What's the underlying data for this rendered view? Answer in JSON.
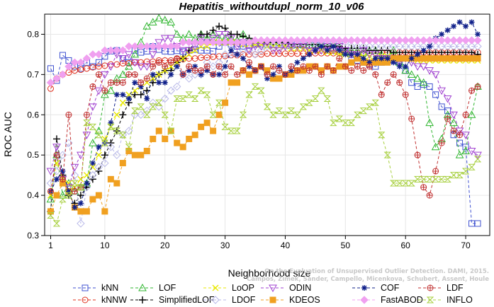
{
  "chart_data": {
    "type": "line",
    "title": "Hepatitis_withoutdupl_norm_10_v06",
    "xlabel": "Neighborhood size",
    "ylabel": "ROC AUC",
    "xlim": [
      0,
      74
    ],
    "ylim": [
      0.3,
      0.85
    ],
    "xticks": [
      1,
      10,
      20,
      30,
      40,
      50,
      60,
      70
    ],
    "yticks": [
      0.3,
      0.4,
      0.5,
      0.6,
      0.7,
      0.8
    ],
    "credit_lines": [
      "Campos, Zimek, Sander, Campello, Micenkova, Schubert, Assent, Houle",
      "On the Evaluation of Unsupervised Outlier Detection. DAMI, 2015."
    ],
    "legend_position": "bottom",
    "series": [
      {
        "name": "kNN",
        "color": "#3f51d0",
        "marker": "square",
        "values": [
          0.715,
          0.685,
          0.748,
          0.735,
          0.72,
          0.715,
          0.73,
          0.72,
          0.73,
          0.745,
          0.758,
          0.76,
          0.74,
          0.73,
          0.76,
          0.755,
          0.758,
          0.77,
          0.762,
          0.758,
          0.757,
          0.759,
          0.757,
          0.76,
          0.762,
          0.76,
          0.76,
          0.758,
          0.77,
          0.78,
          0.775,
          0.77,
          0.77,
          0.772,
          0.775,
          0.775,
          0.775,
          0.775,
          0.778,
          0.775,
          0.772,
          0.774,
          0.773,
          0.772,
          0.772,
          0.771,
          0.77,
          0.765,
          0.76,
          0.755,
          0.735,
          0.735,
          0.73,
          0.725,
          0.72,
          0.73,
          0.735,
          0.735,
          0.735,
          0.71,
          0.68,
          0.67,
          0.675,
          0.67,
          0.65,
          0.62,
          0.61,
          0.55,
          0.53,
          0.52,
          0.33,
          0.33
        ]
      },
      {
        "name": "kNNW",
        "color": "#e0301e",
        "marker": "circle",
        "values": [
          0.665,
          0.69,
          0.7,
          0.705,
          0.71,
          0.712,
          0.715,
          0.718,
          0.72,
          0.722,
          0.725,
          0.725,
          0.728,
          0.728,
          0.73,
          0.73,
          0.732,
          0.732,
          0.735,
          0.735,
          0.735,
          0.738,
          0.738,
          0.74,
          0.74,
          0.742,
          0.742,
          0.744,
          0.745,
          0.746,
          0.748,
          0.748,
          0.75,
          0.75,
          0.75,
          0.75,
          0.752,
          0.752,
          0.752,
          0.752,
          0.752,
          0.752,
          0.752,
          0.752,
          0.753,
          0.753,
          0.753,
          0.753,
          0.754,
          0.754,
          0.754,
          0.754,
          0.754,
          0.754,
          0.754,
          0.755,
          0.755,
          0.755,
          0.755,
          0.755,
          0.755,
          0.755,
          0.755,
          0.755,
          0.755,
          0.755,
          0.755,
          0.755,
          0.755,
          0.755,
          0.755,
          0.755
        ]
      },
      {
        "name": "LOF",
        "color": "#2fb52f",
        "marker": "triangle-up",
        "values": [
          0.39,
          0.5,
          0.4,
          0.43,
          0.41,
          0.42,
          0.43,
          0.53,
          0.56,
          0.65,
          0.66,
          0.69,
          0.7,
          0.72,
          0.75,
          0.78,
          0.82,
          0.83,
          0.84,
          0.835,
          0.83,
          0.8,
          0.79,
          0.8,
          0.79,
          0.8,
          0.79,
          0.8,
          0.79,
          0.79,
          0.79,
          0.785,
          0.8,
          0.785,
          0.78,
          0.78,
          0.775,
          0.78,
          0.78,
          0.775,
          0.775,
          0.775,
          0.775,
          0.78,
          0.775,
          0.775,
          0.77,
          0.775,
          0.77,
          0.755,
          0.76,
          0.76,
          0.755,
          0.76,
          0.76,
          0.75,
          0.74,
          0.76,
          0.73,
          0.71,
          0.7,
          0.69,
          0.68,
          0.58,
          0.52,
          0.54,
          0.6,
          0.58,
          0.5,
          0.51,
          0.6,
          0.67
        ]
      },
      {
        "name": "SimplifiedLOF",
        "color": "#000000",
        "marker": "plus",
        "values": [
          0.36,
          0.54,
          0.45,
          0.4,
          0.38,
          0.4,
          0.42,
          0.44,
          0.46,
          0.5,
          0.53,
          0.56,
          0.6,
          0.63,
          0.65,
          0.65,
          0.66,
          0.68,
          0.7,
          0.71,
          0.71,
          0.73,
          0.74,
          0.76,
          0.78,
          0.8,
          0.8,
          0.81,
          0.82,
          0.815,
          0.8,
          0.8,
          0.795,
          0.79,
          0.785,
          0.785,
          0.78,
          0.78,
          0.78,
          0.78,
          0.775,
          0.775,
          0.775,
          0.775,
          0.775,
          0.77,
          0.77,
          0.77,
          0.77,
          0.765,
          0.765,
          0.765,
          0.765,
          0.76,
          0.76,
          0.76,
          0.76,
          0.755,
          0.755,
          0.755,
          0.755,
          0.755,
          0.755,
          0.755,
          0.755,
          0.755,
          0.755,
          0.755,
          0.755,
          0.755,
          0.755,
          0.75
        ]
      },
      {
        "name": "LoOP",
        "color": "#e8e800",
        "marker": "x",
        "values": [
          0.4,
          0.48,
          0.44,
          0.43,
          0.42,
          0.44,
          0.45,
          0.47,
          0.5,
          0.54,
          0.57,
          0.6,
          0.63,
          0.65,
          0.66,
          0.67,
          0.68,
          0.69,
          0.7,
          0.71,
          0.72,
          0.73,
          0.74,
          0.75,
          0.76,
          0.77,
          0.77,
          0.78,
          0.78,
          0.78,
          0.78,
          0.78,
          0.775,
          0.775,
          0.775,
          0.775,
          0.77,
          0.77,
          0.77,
          0.77,
          0.765,
          0.765,
          0.765,
          0.76,
          0.76,
          0.76,
          0.755,
          0.755,
          0.75,
          0.75,
          0.75,
          0.75,
          0.745,
          0.745,
          0.745,
          0.745,
          0.745,
          0.74,
          0.74,
          0.74,
          0.74,
          0.735,
          0.735,
          0.735,
          0.735,
          0.735,
          0.735,
          0.735,
          0.735,
          0.735,
          0.735,
          0.735
        ]
      },
      {
        "name": "LDOF",
        "color": "#b8b8e8",
        "marker": "diamond",
        "values": [
          0.43,
          0.46,
          0.5,
          0.53,
          0.45,
          0.33,
          0.42,
          0.45,
          0.47,
          0.48,
          0.52,
          0.5,
          0.55,
          0.56,
          0.6,
          0.6,
          0.61,
          0.63,
          0.62,
          0.64,
          0.66,
          0.67,
          0.7,
          0.69,
          0.7,
          0.7,
          0.73,
          0.72,
          0.73,
          0.75,
          0.75,
          0.75,
          0.76,
          0.76,
          0.75,
          0.76,
          0.77,
          0.77,
          0.77,
          0.77,
          0.77,
          0.78,
          0.78,
          0.78,
          0.78,
          0.78,
          0.78,
          0.78,
          0.78,
          0.78,
          0.77,
          0.77,
          0.77,
          0.77,
          0.77,
          0.77,
          0.77,
          0.77,
          0.77,
          0.77,
          0.77,
          0.77,
          0.77,
          0.77,
          0.77,
          0.77,
          0.77,
          0.77,
          0.77,
          0.77,
          0.77,
          0.77
        ]
      },
      {
        "name": "ODIN",
        "color": "#a040d0",
        "marker": "triangle-down",
        "values": [
          0.46,
          0.52,
          0.44,
          0.42,
          0.47,
          0.5,
          0.55,
          0.62,
          0.66,
          0.7,
          0.72,
          0.75,
          0.74,
          0.75,
          0.73,
          0.72,
          0.72,
          0.75,
          0.78,
          0.79,
          0.79,
          0.77,
          0.76,
          0.76,
          0.77,
          0.79,
          0.78,
          0.79,
          0.8,
          0.8,
          0.79,
          0.77,
          0.78,
          0.76,
          0.77,
          0.77,
          0.78,
          0.76,
          0.76,
          0.77,
          0.77,
          0.77,
          0.77,
          0.76,
          0.76,
          0.76,
          0.77,
          0.76,
          0.77,
          0.76,
          0.75,
          0.75,
          0.76,
          0.75,
          0.75,
          0.74,
          0.74,
          0.74,
          0.73,
          0.74,
          0.73,
          0.72,
          0.72,
          0.71,
          0.7,
          0.66,
          0.64,
          0.6,
          0.56,
          0.55,
          0.51,
          0.5
        ]
      },
      {
        "name": "KDEOS",
        "color": "#f0a020",
        "marker": "square-filled",
        "values": [
          0.36,
          0.4,
          0.43,
          0.41,
          0.37,
          0.36,
          0.36,
          0.39,
          0.4,
          0.36,
          0.44,
          0.43,
          0.48,
          0.51,
          0.5,
          0.5,
          0.51,
          0.54,
          0.56,
          0.54,
          0.56,
          0.53,
          0.52,
          0.54,
          0.55,
          0.57,
          0.58,
          0.56,
          0.6,
          0.63,
          0.68,
          0.68,
          0.71,
          0.7,
          0.71,
          0.72,
          0.71,
          0.69,
          0.69,
          0.7,
          0.7,
          0.71,
          0.71,
          0.72,
          0.72,
          0.71,
          0.72,
          0.71,
          0.72,
          0.72,
          0.73,
          0.74,
          0.73,
          0.73,
          0.73,
          0.73,
          0.73,
          0.74,
          0.74,
          0.74,
          0.74,
          0.74,
          0.74,
          0.74,
          0.74,
          0.74,
          0.74,
          0.74,
          0.74,
          0.74,
          0.74,
          0.74
        ]
      },
      {
        "name": "COF",
        "color": "#10208a",
        "marker": "star",
        "values": [
          0.41,
          0.44,
          0.46,
          0.41,
          0.37,
          0.38,
          0.43,
          0.48,
          0.52,
          0.53,
          0.58,
          0.65,
          0.65,
          0.64,
          0.68,
          0.67,
          0.64,
          0.7,
          0.68,
          0.68,
          0.7,
          0.72,
          0.7,
          0.71,
          0.72,
          0.7,
          0.71,
          0.7,
          0.7,
          0.72,
          0.76,
          0.75,
          0.74,
          0.72,
          0.71,
          0.72,
          0.69,
          0.7,
          0.72,
          0.7,
          0.71,
          0.73,
          0.74,
          0.75,
          0.76,
          0.77,
          0.76,
          0.77,
          0.76,
          0.75,
          0.75,
          0.75,
          0.74,
          0.73,
          0.74,
          0.74,
          0.74,
          0.73,
          0.72,
          0.72,
          0.74,
          0.75,
          0.76,
          0.77,
          0.79,
          0.8,
          0.81,
          0.82,
          0.83,
          0.82,
          0.83,
          0.8
        ]
      },
      {
        "name": "FastABOD",
        "color": "#f0a0f0",
        "marker": "diamond-filled",
        "values": [
          0.68,
          0.69,
          0.7,
          0.72,
          0.73,
          0.73,
          0.74,
          0.75,
          0.75,
          0.76,
          0.76,
          0.76,
          0.76,
          0.77,
          0.77,
          0.77,
          0.77,
          0.77,
          0.77,
          0.77,
          0.77,
          0.77,
          0.78,
          0.78,
          0.78,
          0.78,
          0.78,
          0.78,
          0.78,
          0.78,
          0.78,
          0.78,
          0.78,
          0.78,
          0.785,
          0.785,
          0.785,
          0.785,
          0.785,
          0.785,
          0.785,
          0.785,
          0.785,
          0.785,
          0.785,
          0.785,
          0.785,
          0.785,
          0.785,
          0.785,
          0.785,
          0.785,
          0.785,
          0.785,
          0.785,
          0.785,
          0.785,
          0.785,
          0.785,
          0.785,
          0.785,
          0.785,
          0.785,
          0.785,
          0.785,
          0.785,
          0.785,
          0.785,
          0.785,
          0.785,
          0.785,
          0.785
        ]
      },
      {
        "name": "LDF",
        "color": "#c03030",
        "marker": "circle-plus",
        "values": [
          0.41,
          0.5,
          0.44,
          0.6,
          0.41,
          0.42,
          0.6,
          0.67,
          0.7,
          0.66,
          0.68,
          0.68,
          0.68,
          0.7,
          0.7,
          0.68,
          0.69,
          0.72,
          0.73,
          0.72,
          0.73,
          0.74,
          0.7,
          0.72,
          0.71,
          0.71,
          0.72,
          0.7,
          0.72,
          0.7,
          0.72,
          0.7,
          0.71,
          0.73,
          0.71,
          0.72,
          0.7,
          0.72,
          0.71,
          0.7,
          0.72,
          0.71,
          0.72,
          0.71,
          0.72,
          0.7,
          0.72,
          0.71,
          0.74,
          0.72,
          0.71,
          0.72,
          0.71,
          0.72,
          0.7,
          0.65,
          0.68,
          0.7,
          0.68,
          0.65,
          0.59,
          0.5,
          0.42,
          0.4,
          0.46,
          0.53,
          0.59,
          0.56,
          0.55,
          0.6,
          0.66,
          0.67
        ]
      },
      {
        "name": "INFLO",
        "color": "#a8d040",
        "marker": "hourglass",
        "values": [
          0.35,
          0.33,
          0.39,
          0.4,
          0.43,
          0.42,
          0.58,
          0.57,
          0.55,
          0.53,
          0.57,
          0.56,
          0.55,
          0.52,
          0.61,
          0.62,
          0.6,
          0.62,
          0.63,
          0.6,
          0.56,
          0.64,
          0.64,
          0.65,
          0.64,
          0.66,
          0.65,
          0.6,
          0.63,
          0.57,
          0.56,
          0.56,
          0.6,
          0.65,
          0.67,
          0.66,
          0.62,
          0.6,
          0.61,
          0.6,
          0.61,
          0.6,
          0.62,
          0.63,
          0.64,
          0.66,
          0.64,
          0.58,
          0.59,
          0.58,
          0.58,
          0.6,
          0.61,
          0.62,
          0.63,
          0.55,
          0.5,
          0.43,
          0.43,
          0.43,
          0.43,
          0.44,
          0.44,
          0.44,
          0.44,
          0.44,
          0.44,
          0.45,
          0.45,
          0.46,
          0.47,
          0.49
        ]
      }
    ]
  }
}
